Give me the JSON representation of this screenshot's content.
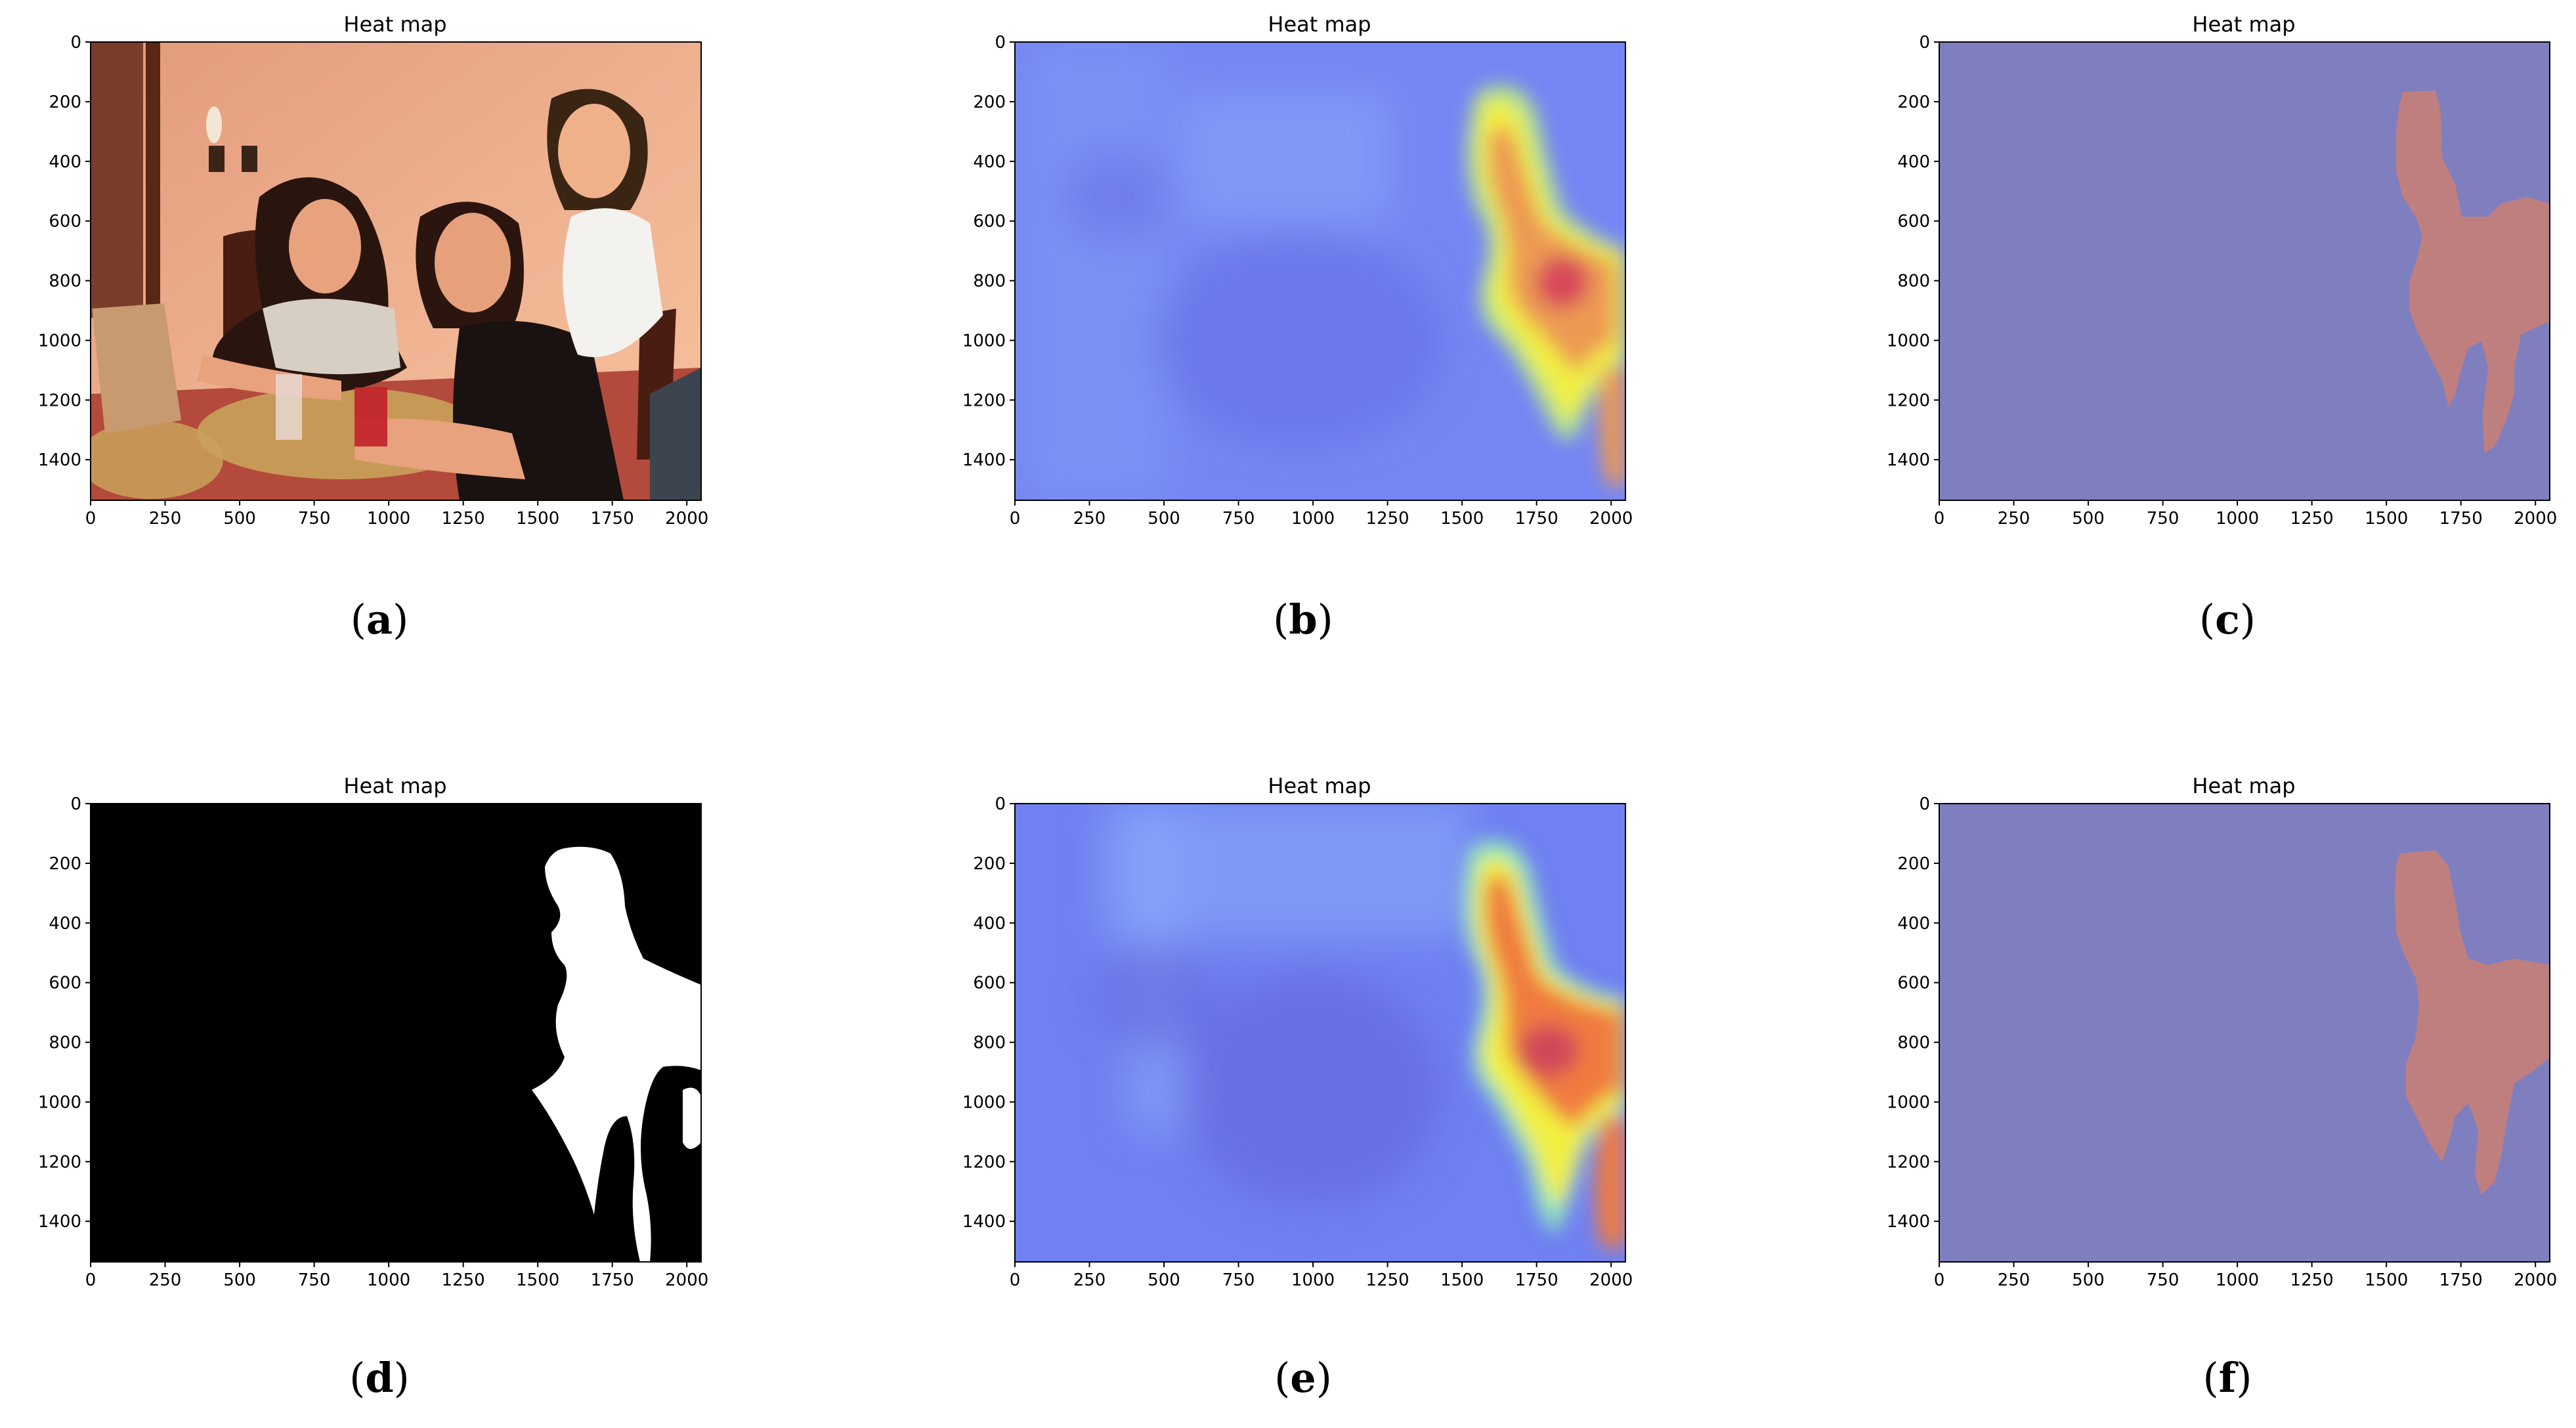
{
  "chart_data": [
    {
      "type": "heatmap",
      "panel": "a",
      "title": "Heat map",
      "caption_letter": "a",
      "content": "photo",
      "xlim": [
        0,
        2048
      ],
      "ylim": [
        1536,
        0
      ],
      "xticks": [
        0,
        250,
        500,
        750,
        1000,
        1250,
        1500,
        1750,
        2000
      ],
      "yticks": [
        0,
        200,
        400,
        600,
        800,
        1000,
        1200,
        1400
      ]
    },
    {
      "type": "heatmap",
      "panel": "b",
      "title": "Heat map",
      "caption_letter": "b",
      "content": "heat",
      "xlim": [
        0,
        2048
      ],
      "ylim": [
        1536,
        0
      ],
      "xticks": [
        0,
        250,
        500,
        750,
        1000,
        1250,
        1500,
        1750,
        2000
      ],
      "yticks": [
        0,
        200,
        400,
        600,
        800,
        1000,
        1200,
        1400
      ]
    },
    {
      "type": "heatmap",
      "panel": "c",
      "title": "Heat map",
      "caption_letter": "c",
      "content": "mask-overlay",
      "xlim": [
        0,
        2048
      ],
      "ylim": [
        1536,
        0
      ],
      "xticks": [
        0,
        250,
        500,
        750,
        1000,
        1250,
        1500,
        1750,
        2000
      ],
      "yticks": [
        0,
        200,
        400,
        600,
        800,
        1000,
        1200,
        1400
      ]
    },
    {
      "type": "heatmap",
      "panel": "d",
      "title": "Heat map",
      "caption_letter": "d",
      "content": "binary-mask",
      "xlim": [
        0,
        2048
      ],
      "ylim": [
        1536,
        0
      ],
      "xticks": [
        0,
        250,
        500,
        750,
        1000,
        1250,
        1500,
        1750,
        2000
      ],
      "yticks": [
        0,
        200,
        400,
        600,
        800,
        1000,
        1200,
        1400
      ]
    },
    {
      "type": "heatmap",
      "panel": "e",
      "title": "Heat map",
      "caption_letter": "e",
      "content": "heat-smooth",
      "xlim": [
        0,
        2048
      ],
      "ylim": [
        1536,
        0
      ],
      "xticks": [
        0,
        250,
        500,
        750,
        1000,
        1250,
        1500,
        1750,
        2000
      ],
      "yticks": [
        0,
        200,
        400,
        600,
        800,
        1000,
        1200,
        1400
      ]
    },
    {
      "type": "heatmap",
      "panel": "f",
      "title": "Heat map",
      "caption_letter": "f",
      "content": "mask-overlay",
      "xlim": [
        0,
        2048
      ],
      "ylim": [
        1536,
        0
      ],
      "xticks": [
        0,
        250,
        500,
        750,
        1000,
        1250,
        1500,
        1750,
        2000
      ],
      "yticks": [
        0,
        200,
        400,
        600,
        800,
        1000,
        1200,
        1400
      ]
    }
  ],
  "colors": {
    "overlay_background": "#7f7fbf",
    "overlay_region": "#bf7f7f",
    "heat_low": "#6f7ff5",
    "heat_mid": "#f2ef40",
    "heat_high": "#e0404a",
    "mask_background": "#000000",
    "mask_region": "#ffffff"
  }
}
